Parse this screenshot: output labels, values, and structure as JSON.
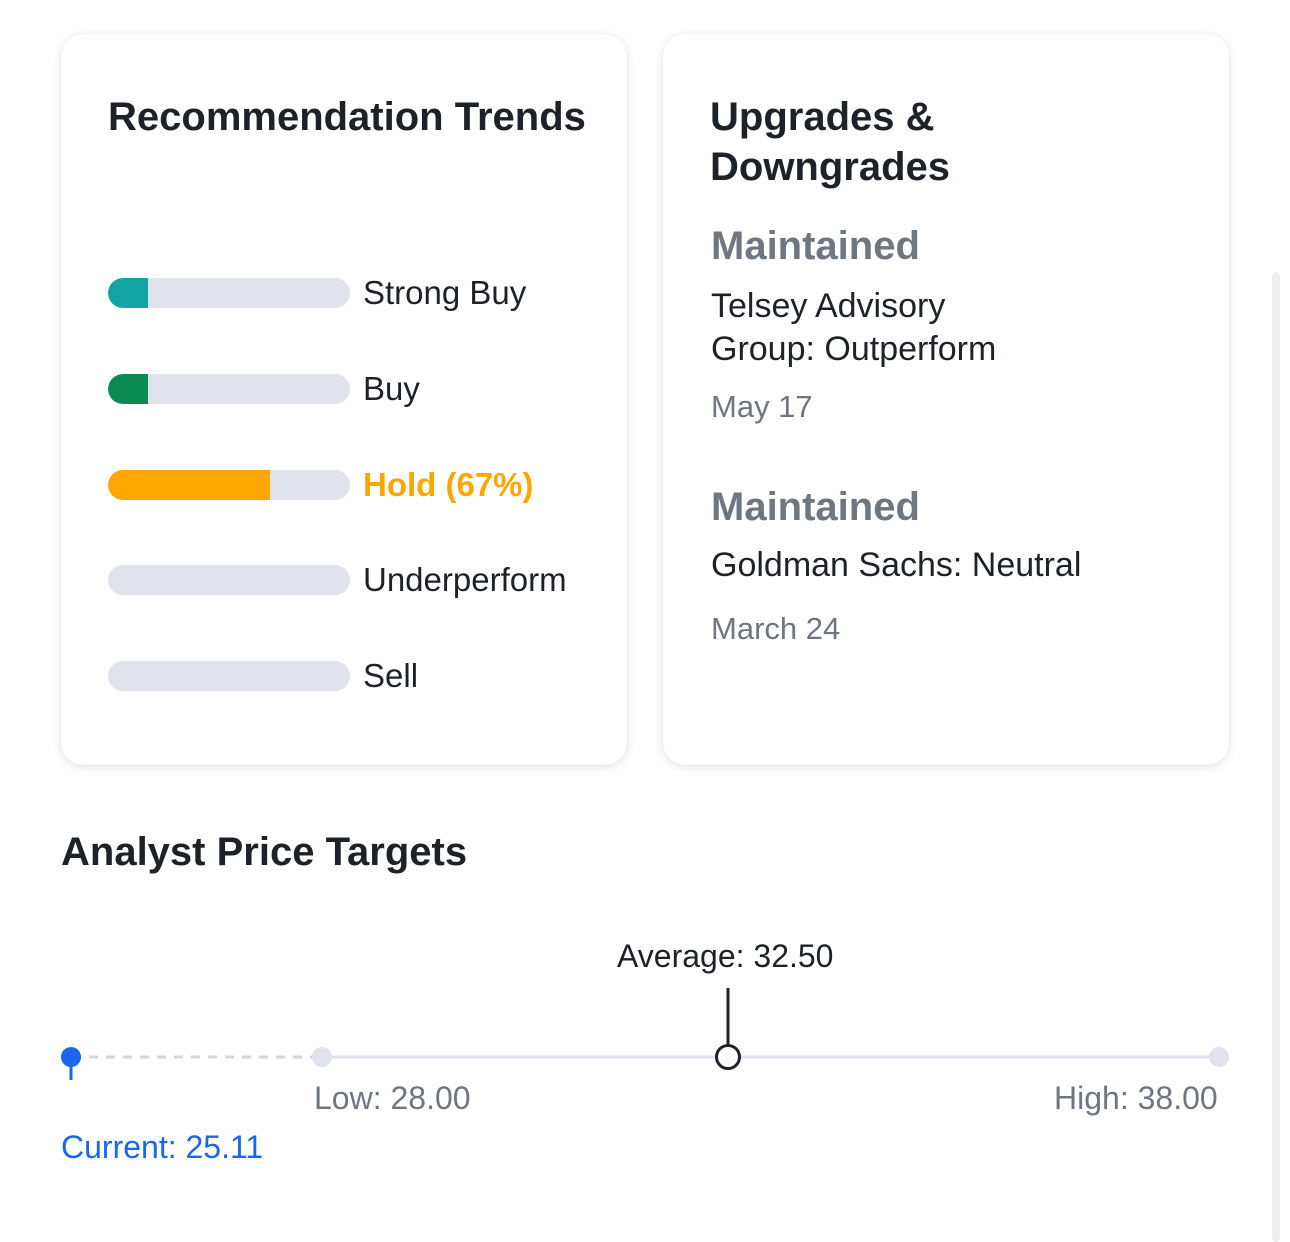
{
  "recommendation_trends": {
    "title": "Recommendation Trends",
    "items": [
      {
        "label": "Strong Buy",
        "fill_fraction": 0.165,
        "color": "#12a3a3",
        "active": false
      },
      {
        "label": "Buy",
        "fill_fraction": 0.165,
        "color": "#0b8a54",
        "active": false
      },
      {
        "label": "Hold (67%)",
        "fill_fraction": 0.67,
        "color": "#ffa700",
        "active": true
      },
      {
        "label": "Underperform",
        "fill_fraction": 0,
        "color": "#e0e3eb",
        "active": false
      },
      {
        "label": "Sell",
        "fill_fraction": 0,
        "color": "#e0e3eb",
        "active": false
      }
    ]
  },
  "upgrades_downgrades": {
    "title": "Upgrades & Downgrades",
    "items": [
      {
        "status": "Maintained",
        "firm": "Telsey Advisory Group: Outperform",
        "date": "May 17"
      },
      {
        "status": "Maintained",
        "firm": "Goldman Sachs: Neutral",
        "date": "March 24"
      }
    ]
  },
  "analyst_price_targets": {
    "title": "Analyst Price Targets",
    "current_label": "Current: 25.11",
    "low_label": "Low: 28.00",
    "average_label": "Average: 32.50",
    "high_label": "High: 38.00",
    "current": 25.11,
    "low": 28.0,
    "average": 32.5,
    "high": 38.0,
    "colors": {
      "current": "#1a66ec",
      "track": "#e0e3eb",
      "dashed": "#d3d7de",
      "average": "#1d2228",
      "muted_text": "#6e7780"
    }
  }
}
